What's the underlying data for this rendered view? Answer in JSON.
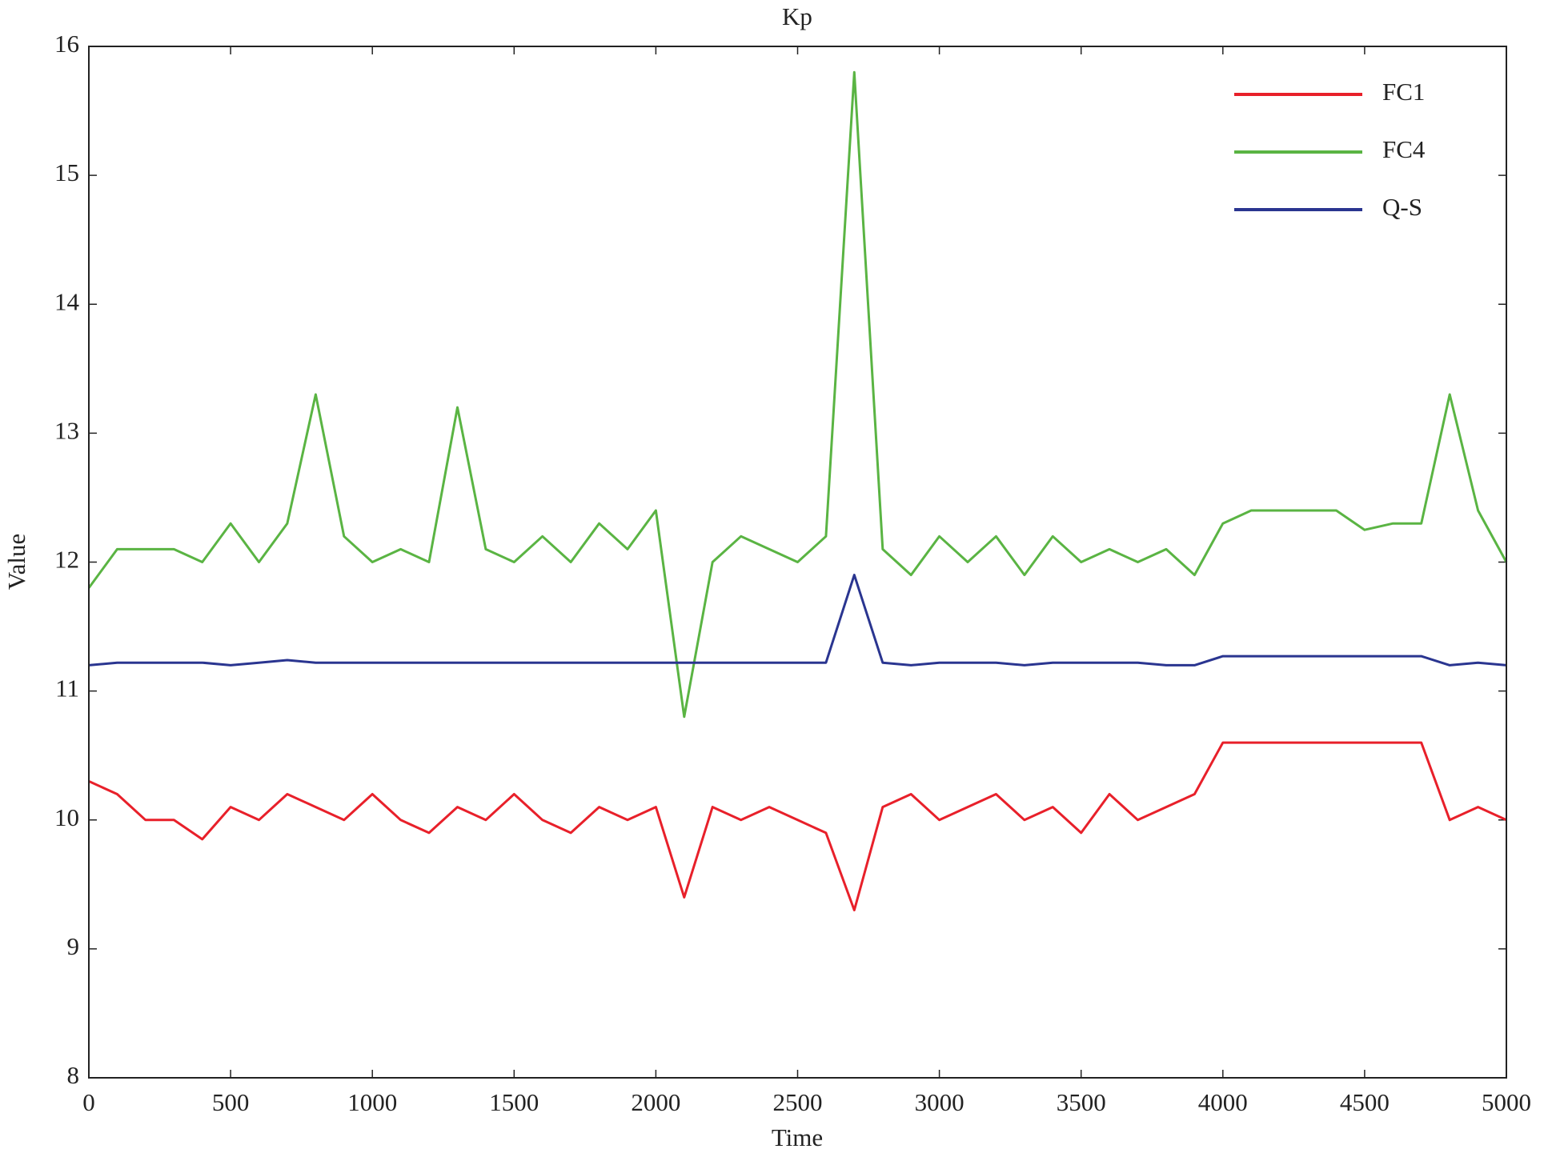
{
  "chart_data": {
    "type": "line",
    "title": "Kp",
    "xlabel": "Time",
    "ylabel": "Value",
    "x": [
      0,
      100,
      200,
      300,
      400,
      500,
      600,
      700,
      800,
      900,
      1000,
      1100,
      1200,
      1300,
      1400,
      1500,
      1600,
      1700,
      1800,
      1900,
      2000,
      2100,
      2200,
      2300,
      2400,
      2500,
      2600,
      2700,
      2800,
      2900,
      3000,
      3100,
      3200,
      3300,
      3400,
      3500,
      3600,
      3700,
      3800,
      3900,
      4000,
      4100,
      4200,
      4300,
      4400,
      4500,
      4600,
      4700,
      4800,
      4900,
      5000
    ],
    "series": [
      {
        "name": "FC1",
        "color": "#e8202a",
        "values": [
          10.3,
          10.2,
          10.0,
          10.0,
          9.85,
          10.1,
          10.0,
          10.2,
          10.1,
          10.0,
          10.2,
          10.0,
          9.9,
          10.1,
          10.0,
          10.2,
          10.0,
          9.9,
          10.1,
          10.0,
          10.1,
          9.4,
          10.1,
          10.0,
          10.1,
          10.0,
          9.9,
          9.3,
          10.1,
          10.2,
          10.0,
          10.1,
          10.2,
          10.0,
          10.1,
          9.9,
          10.2,
          10.0,
          10.1,
          10.2,
          10.6,
          10.6,
          10.6,
          10.6,
          10.6,
          10.6,
          10.6,
          10.6,
          10.0,
          10.1,
          10.0
        ]
      },
      {
        "name": "FC4",
        "color": "#5ab443",
        "values": [
          11.8,
          12.1,
          12.1,
          12.1,
          12.0,
          12.3,
          12.0,
          12.3,
          13.3,
          12.2,
          12.0,
          12.1,
          12.0,
          13.2,
          12.1,
          12.0,
          12.2,
          12.0,
          12.3,
          12.1,
          12.4,
          10.8,
          12.0,
          12.2,
          12.1,
          12.0,
          12.2,
          15.8,
          12.1,
          11.9,
          12.2,
          12.0,
          12.2,
          11.9,
          12.2,
          12.0,
          12.1,
          12.0,
          12.1,
          11.9,
          12.3,
          12.4,
          12.4,
          12.4,
          12.4,
          12.25,
          12.3,
          12.3,
          13.3,
          12.4,
          12.0
        ]
      },
      {
        "name": "Q-S",
        "color": "#2a3590",
        "values": [
          11.2,
          11.22,
          11.22,
          11.22,
          11.22,
          11.2,
          11.22,
          11.24,
          11.22,
          11.22,
          11.22,
          11.22,
          11.22,
          11.22,
          11.22,
          11.22,
          11.22,
          11.22,
          11.22,
          11.22,
          11.22,
          11.22,
          11.22,
          11.22,
          11.22,
          11.22,
          11.22,
          11.9,
          11.22,
          11.2,
          11.22,
          11.22,
          11.22,
          11.2,
          11.22,
          11.22,
          11.22,
          11.22,
          11.2,
          11.2,
          11.27,
          11.27,
          11.27,
          11.27,
          11.27,
          11.27,
          11.27,
          11.27,
          11.2,
          11.22,
          11.2
        ]
      }
    ],
    "xlim": [
      0,
      5000
    ],
    "xticks": [
      0,
      500,
      1000,
      1500,
      2000,
      2500,
      3000,
      3500,
      4000,
      4500,
      5000
    ],
    "ylim": [
      8,
      16
    ],
    "yticks": [
      8,
      9,
      10,
      11,
      12,
      13,
      14,
      15,
      16
    ],
    "legend": "upper right",
    "grid": false
  }
}
